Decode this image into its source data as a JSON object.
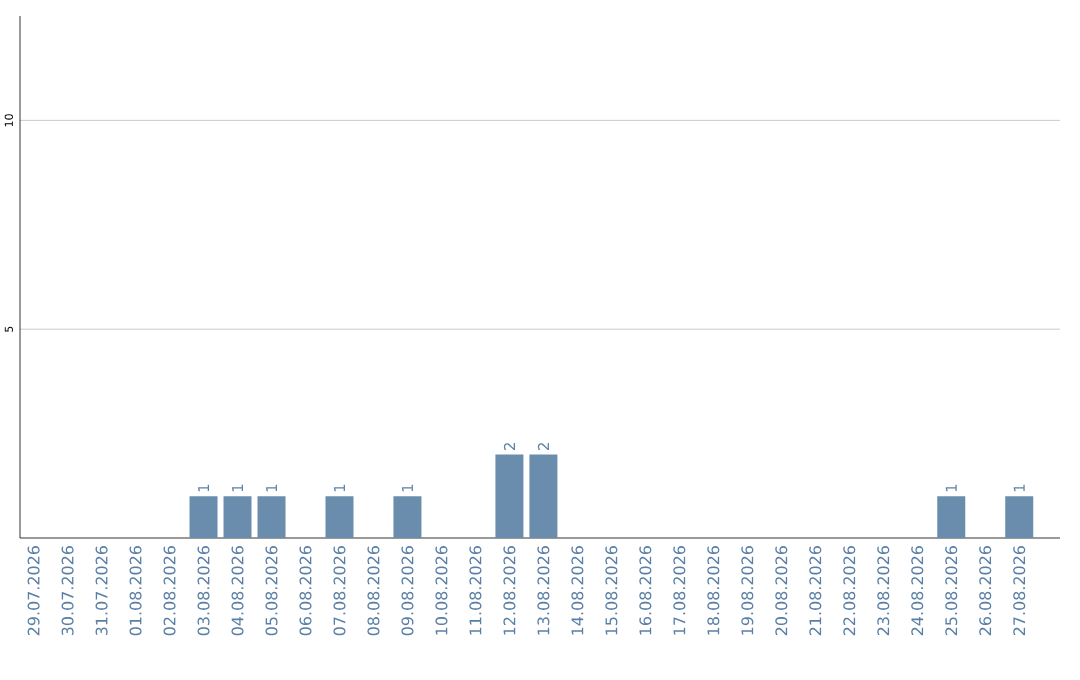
{
  "chart_data": {
    "type": "bar",
    "categories": [
      "29.07.2026",
      "30.07.2026",
      "31.07.2026",
      "01.08.2026",
      "02.08.2026",
      "03.08.2026",
      "04.08.2026",
      "05.08.2026",
      "06.08.2026",
      "07.08.2026",
      "08.08.2026",
      "09.08.2026",
      "10.08.2026",
      "11.08.2026",
      "12.08.2026",
      "13.08.2026",
      "14.08.2026",
      "15.08.2026",
      "16.08.2026",
      "17.08.2026",
      "18.08.2026",
      "19.08.2026",
      "20.08.2026",
      "21.08.2026",
      "22.08.2026",
      "23.08.2026",
      "24.08.2026",
      "25.08.2026",
      "26.08.2026",
      "27.08.2026"
    ],
    "values": [
      null,
      null,
      null,
      null,
      null,
      1,
      1,
      1,
      null,
      1,
      null,
      1,
      null,
      null,
      2,
      2,
      null,
      null,
      null,
      null,
      null,
      null,
      null,
      null,
      null,
      null,
      null,
      1,
      null,
      1
    ],
    "color": "#6a8cad",
    "ylim": [
      0,
      12.5
    ],
    "yticks": [
      5,
      10
    ],
    "grid": "y",
    "data_labels": true
  }
}
